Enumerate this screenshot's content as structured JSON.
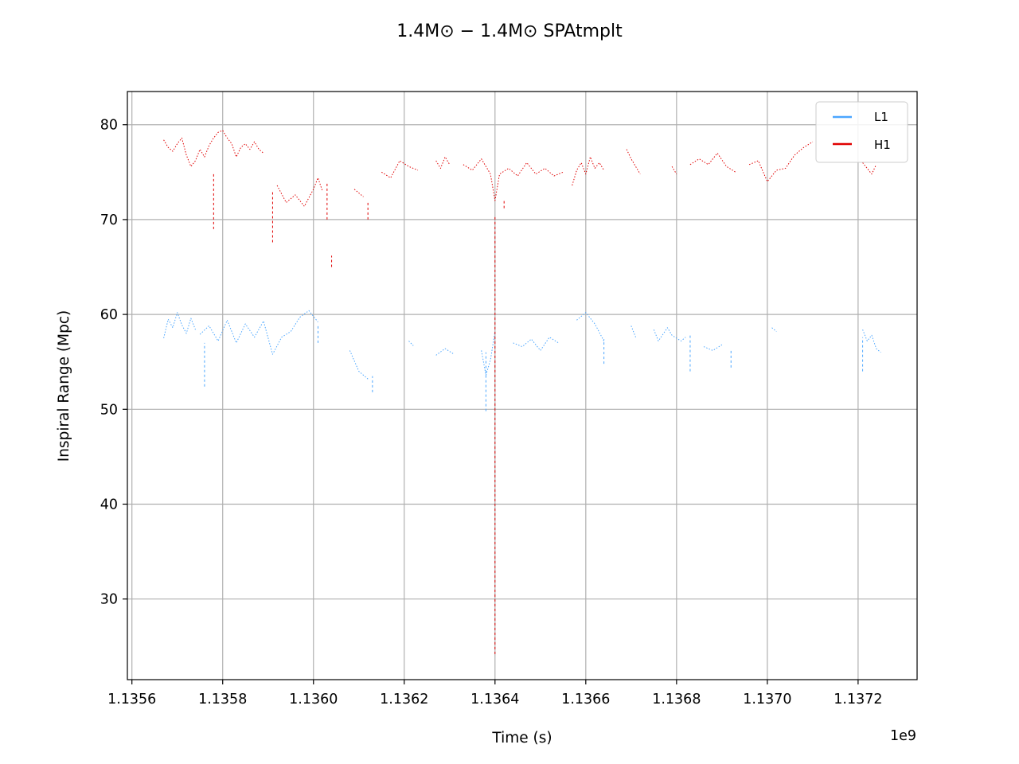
{
  "chart_data": {
    "type": "line",
    "title": "1.4M⊙ − 1.4M⊙ SPAtmplt",
    "xlabel": "Time (s)",
    "ylabel": "Inspiral Range (Mpc)",
    "x_offset_label": "1e9",
    "xlim": [
      1.13559,
      1.13733
    ],
    "ylim": [
      21.5,
      83.5
    ],
    "x_ticks": [
      1.1356,
      1.1358,
      1.136,
      1.1362,
      1.1364,
      1.1366,
      1.1368,
      1.137,
      1.1372
    ],
    "x_tick_labels": [
      "1.1356",
      "1.1358",
      "1.1360",
      "1.1362",
      "1.1364",
      "1.1366",
      "1.1368",
      "1.1370",
      "1.1372"
    ],
    "y_ticks": [
      30,
      40,
      50,
      60,
      70,
      80
    ],
    "y_tick_labels": [
      "30",
      "40",
      "50",
      "60",
      "70",
      "80"
    ],
    "grid": true,
    "legend_position": "top-right",
    "colors": {
      "L1": "#4ba6ff",
      "H1": "#e00000"
    },
    "series": [
      {
        "name": "L1",
        "segments": [
          {
            "x": [
              1.13567,
              1.13568,
              1.13569,
              1.1357,
              1.13571,
              1.13572,
              1.13573,
              1.13574
            ],
            "y": [
              57.5,
              59.5,
              58.6,
              60.2,
              58.9,
              58.0,
              59.6,
              58.4
            ]
          },
          {
            "x": [
              1.13575,
              1.13577,
              1.13579,
              1.13581,
              1.13583,
              1.13585,
              1.13587,
              1.13589,
              1.13591,
              1.13593,
              1.13595,
              1.13597,
              1.13599,
              1.13601
            ],
            "y": [
              57.9,
              58.8,
              57.2,
              59.4,
              57.0,
              59.0,
              57.6,
              59.3,
              55.8,
              57.6,
              58.2,
              59.7,
              60.4,
              59.2
            ]
          },
          {
            "x": [
              1.13608,
              1.1361,
              1.13612
            ],
            "y": [
              56.2,
              54.0,
              53.2
            ]
          },
          {
            "x": [
              1.13621,
              1.13622
            ],
            "y": [
              57.2,
              56.7
            ]
          },
          {
            "x": [
              1.13627,
              1.13629,
              1.13631
            ],
            "y": [
              55.7,
              56.4,
              55.8
            ]
          },
          {
            "x": [
              1.13637,
              1.13638,
              1.13639,
              1.1364
            ],
            "y": [
              56.2,
              53.6,
              55.2,
              58.2
            ]
          },
          {
            "x": [
              1.13644,
              1.13646,
              1.13648,
              1.1365,
              1.13652,
              1.13654
            ],
            "y": [
              57.0,
              56.6,
              57.4,
              56.2,
              57.6,
              57.0
            ]
          },
          {
            "x": [
              1.13658,
              1.1366,
              1.13662,
              1.13664
            ],
            "y": [
              59.4,
              60.2,
              59.0,
              57.2
            ]
          },
          {
            "x": [
              1.1367,
              1.13671
            ],
            "y": [
              58.8,
              57.6
            ]
          },
          {
            "x": [
              1.13675,
              1.13676,
              1.13678,
              1.13679,
              1.13681,
              1.13682
            ],
            "y": [
              58.4,
              57.2,
              58.6,
              57.8,
              57.2,
              57.6
            ]
          },
          {
            "x": [
              1.13686,
              1.13688,
              1.1369
            ],
            "y": [
              56.6,
              56.2,
              56.8
            ]
          },
          {
            "x": [
              1.13701,
              1.13702
            ],
            "y": [
              58.6,
              58.2
            ]
          },
          {
            "x": [
              1.13721,
              1.13722,
              1.13723,
              1.13724,
              1.13725
            ],
            "y": [
              58.4,
              57.2,
              57.8,
              56.4,
              56.0
            ]
          }
        ]
      },
      {
        "name": "H1",
        "segments": [
          {
            "x": [
              1.13567,
              1.13568,
              1.13569,
              1.1357,
              1.13571,
              1.13572,
              1.13573,
              1.13574,
              1.13575,
              1.13576,
              1.13577,
              1.13578,
              1.13579,
              1.1358,
              1.13581,
              1.13582,
              1.13583,
              1.13584,
              1.13585,
              1.13586,
              1.13587,
              1.13588,
              1.13589
            ],
            "y": [
              78.4,
              77.6,
              77.2,
              78.0,
              78.6,
              76.8,
              75.6,
              76.2,
              77.4,
              76.6,
              77.8,
              78.6,
              79.2,
              79.4,
              78.6,
              78.0,
              76.6,
              77.6,
              78.0,
              77.4,
              78.2,
              77.4,
              77.0
            ]
          },
          {
            "x": [
              1.13592,
              1.13594,
              1.13596,
              1.13598,
              1.136,
              1.13601,
              1.13602
            ],
            "y": [
              73.6,
              71.8,
              72.6,
              71.4,
              73.2,
              74.4,
              73.0
            ]
          },
          {
            "x": [
              1.13609,
              1.13611
            ],
            "y": [
              73.2,
              72.4
            ]
          },
          {
            "x": [
              1.13615,
              1.13617,
              1.13619,
              1.13621,
              1.13623
            ],
            "y": [
              75.0,
              74.4,
              76.2,
              75.6,
              75.2
            ]
          },
          {
            "x": [
              1.13627,
              1.13628,
              1.13629,
              1.1363
            ],
            "y": [
              76.2,
              75.4,
              76.6,
              75.8
            ]
          },
          {
            "x": [
              1.13633,
              1.13635,
              1.13637,
              1.13639,
              1.1364,
              1.13641,
              1.13643,
              1.13645,
              1.13647,
              1.13649,
              1.13651,
              1.13653,
              1.13655
            ],
            "y": [
              75.8,
              75.2,
              76.4,
              74.8,
              72.0,
              74.8,
              75.4,
              74.6,
              76.0,
              74.8,
              75.4,
              74.6,
              75.0
            ]
          },
          {
            "x": [
              1.13657,
              1.13658,
              1.13659,
              1.1366,
              1.13661,
              1.13662,
              1.13663,
              1.13664
            ],
            "y": [
              73.6,
              75.2,
              76.0,
              74.8,
              76.6,
              75.4,
              76.0,
              75.2
            ]
          },
          {
            "x": [
              1.13669,
              1.1367,
              1.13671,
              1.13672
            ],
            "y": [
              77.4,
              76.4,
              75.6,
              74.8
            ]
          },
          {
            "x": [
              1.13679,
              1.1368
            ],
            "y": [
              75.6,
              74.8
            ]
          },
          {
            "x": [
              1.13683,
              1.13685,
              1.13687,
              1.13689,
              1.13691,
              1.13693
            ],
            "y": [
              75.8,
              76.4,
              75.8,
              77.0,
              75.6,
              75.0
            ]
          },
          {
            "x": [
              1.13696,
              1.13698,
              1.137,
              1.13702,
              1.13704,
              1.13706,
              1.13708,
              1.1371
            ],
            "y": [
              75.8,
              76.2,
              74.0,
              75.2,
              75.4,
              76.8,
              77.6,
              78.2
            ]
          },
          {
            "x": [
              1.13721,
              1.13722,
              1.13723,
              1.13724
            ],
            "y": [
              76.0,
              75.4,
              74.8,
              75.8
            ]
          }
        ]
      }
    ],
    "spikes": [
      {
        "series": "H1",
        "x": 1.13578,
        "y": [
          69.0,
          75.0
        ]
      },
      {
        "series": "H1",
        "x": 1.13591,
        "y": [
          67.6,
          73.0
        ]
      },
      {
        "series": "H1",
        "x": 1.13603,
        "y": [
          70.0,
          74.0
        ]
      },
      {
        "series": "H1",
        "x": 1.13604,
        "y": [
          65.0,
          66.2
        ]
      },
      {
        "series": "H1",
        "x": 1.13612,
        "y": [
          70.0,
          72.0
        ]
      },
      {
        "series": "H1",
        "x": 1.1364,
        "y": [
          24.2,
          70.4
        ]
      },
      {
        "series": "H1",
        "x": 1.13642,
        "y": [
          71.2,
          72.2
        ]
      },
      {
        "series": "L1",
        "x": 1.13576,
        "y": [
          52.4,
          57.0
        ]
      },
      {
        "series": "L1",
        "x": 1.13601,
        "y": [
          57.0,
          59.0
        ]
      },
      {
        "series": "L1",
        "x": 1.13613,
        "y": [
          51.8,
          53.5
        ]
      },
      {
        "series": "L1",
        "x": 1.13638,
        "y": [
          49.8,
          56.0
        ]
      },
      {
        "series": "L1",
        "x": 1.13664,
        "y": [
          54.8,
          57.4
        ]
      },
      {
        "series": "L1",
        "x": 1.13683,
        "y": [
          54.0,
          57.8
        ]
      },
      {
        "series": "L1",
        "x": 1.13692,
        "y": [
          54.4,
          56.4
        ]
      },
      {
        "series": "L1",
        "x": 1.13721,
        "y": [
          54.0,
          57.6
        ]
      }
    ]
  }
}
